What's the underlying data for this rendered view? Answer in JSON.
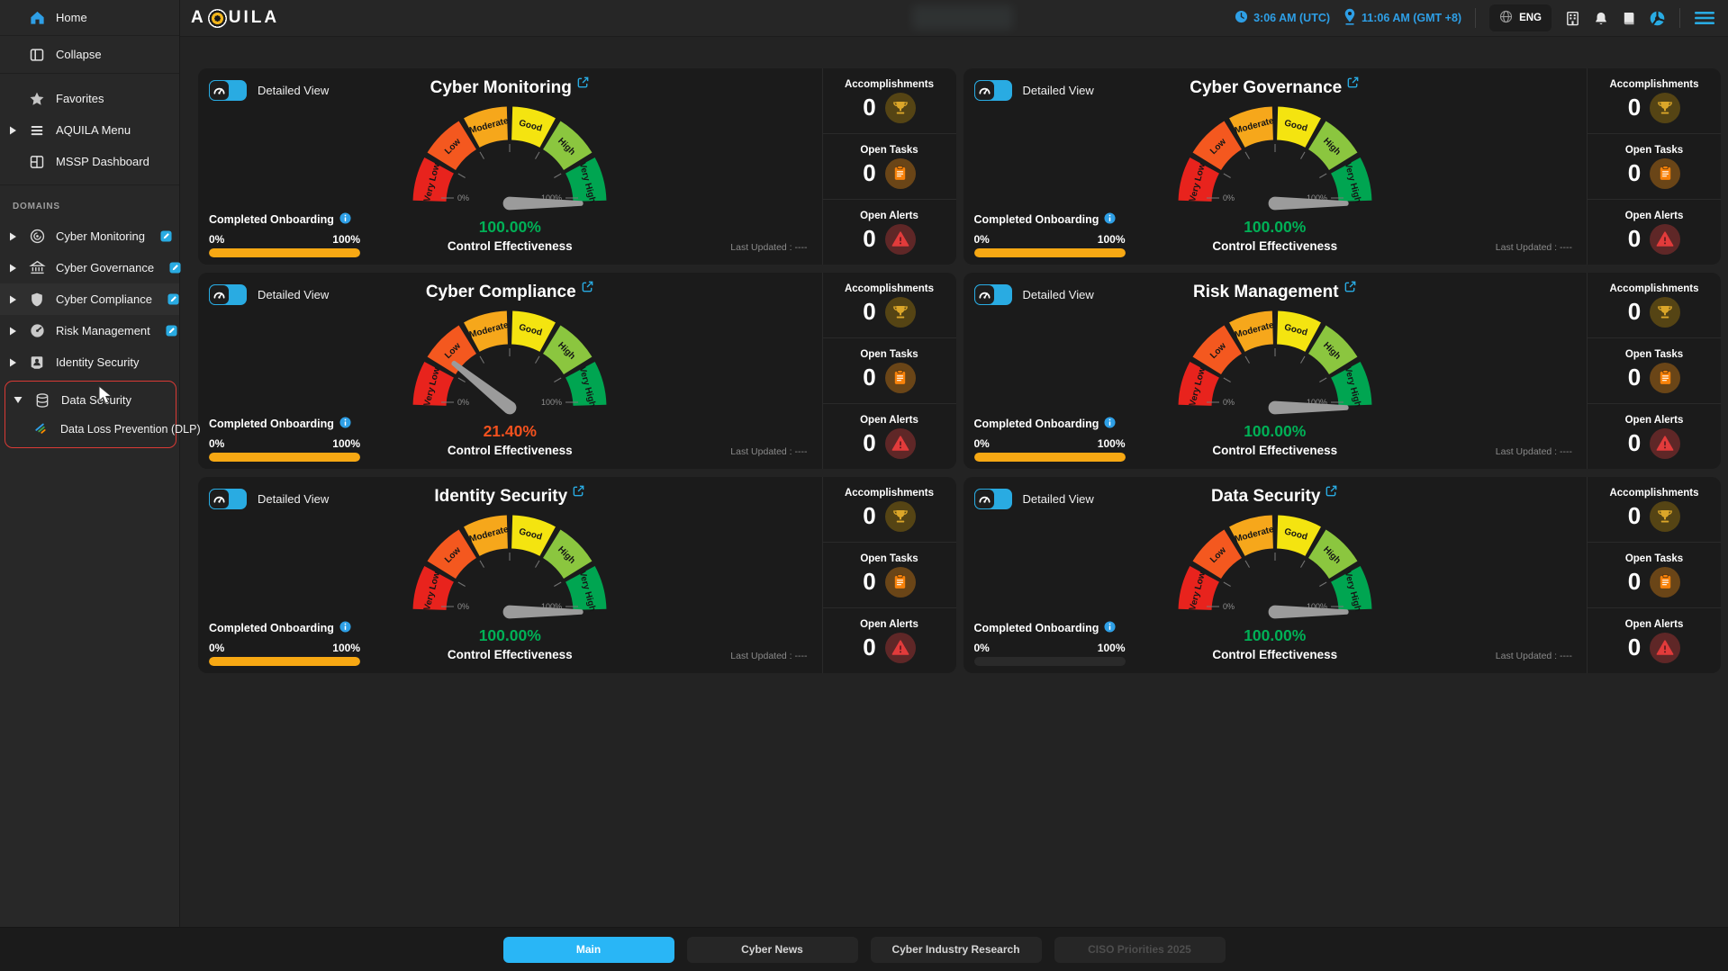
{
  "topbar": {
    "logo": "AQUILA",
    "utc_time": "3:06 AM (UTC)",
    "local_time": "11:06 AM (GMT +8)",
    "language": "ENG",
    "icons": [
      "clock-icon",
      "location-pin-icon",
      "globe-icon",
      "building-icon",
      "bell-icon",
      "book-icon",
      "support-wheel-icon",
      "menu-icon"
    ],
    "accent_blue": "#2e9fe6"
  },
  "sidebar": {
    "items": [
      {
        "label": "Home",
        "icon": "home",
        "caret": false
      },
      {
        "label": "Collapse",
        "icon": "collapse",
        "caret": false
      },
      {
        "label": "Favorites",
        "icon": "star",
        "caret": false
      },
      {
        "label": "AQUILA Menu",
        "icon": "menuLines",
        "caret": true
      },
      {
        "label": "MSSP Dashboard",
        "icon": "dashboard",
        "caret": false
      }
    ],
    "domains_header": "DOMAINS",
    "domains": [
      {
        "label": "Cyber Monitoring",
        "icon": "radar",
        "editable": true,
        "highlight": false
      },
      {
        "label": "Cyber Governance",
        "icon": "bank",
        "editable": true,
        "highlight": false
      },
      {
        "label": "Cyber Compliance",
        "icon": "shield",
        "editable": true,
        "highlight": true
      },
      {
        "label": "Risk Management",
        "icon": "speedo",
        "editable": true,
        "highlight": false
      },
      {
        "label": "Identity Security",
        "icon": "idbadge",
        "editable": false,
        "highlight": false
      }
    ],
    "data_security": {
      "label": "Data Security",
      "icon": "database-icon",
      "sub_label": "Data Loss Prevention (DLP)",
      "sub_icon": "dlp-icon",
      "focus_border_color": "#d93a35"
    }
  },
  "card_common": {
    "detailed_view": "Detailed View",
    "completed_onboarding": "Completed Onboarding",
    "scale_min": "0%",
    "scale_max": "100%",
    "control_effectiveness": "Control Effectiveness",
    "last_updated": "Last Updated : ----",
    "onboarding_bar_color": "#f7a813",
    "stats": [
      {
        "label": "Accomplishments",
        "count_key": "accomplishments",
        "icon": "trophy-icon",
        "circle": "#554414",
        "icon_color": "#dba629"
      },
      {
        "label": "Open Tasks",
        "count_key": "open_tasks",
        "icon": "clipboard-icon",
        "circle": "#6a4517",
        "icon_color": "#f8820a"
      },
      {
        "label": "Open Alerts",
        "count_key": "open_alerts",
        "icon": "alert-triangle-icon",
        "circle": "#5f2727",
        "icon_color": "#e23b3b"
      }
    ]
  },
  "gauge": {
    "segments": [
      {
        "label": "Very Low",
        "color": "#e8231d"
      },
      {
        "label": "Low",
        "color": "#f4581f"
      },
      {
        "label": "Moderate",
        "color": "#f6a71b"
      },
      {
        "label": "Good",
        "color": "#f4e410"
      },
      {
        "label": "High",
        "color": "#8bc63f"
      },
      {
        "label": "Very High",
        "color": "#00a551"
      }
    ],
    "min_label": "0%",
    "max_label": "100%",
    "needle_color": "#9b9b9b"
  },
  "cards": [
    {
      "title": "Cyber Monitoring",
      "value_pct": 100,
      "value_display": "100.00%",
      "value_color": "#00b056",
      "onboarding_filled": true,
      "accomplishments": "0",
      "open_tasks": "0",
      "open_alerts": "0"
    },
    {
      "title": "Cyber Governance",
      "value_pct": 100,
      "value_display": "100.00%",
      "value_color": "#00b056",
      "onboarding_filled": true,
      "accomplishments": "0",
      "open_tasks": "0",
      "open_alerts": "0"
    },
    {
      "title": "Cyber Compliance",
      "value_pct": 21.4,
      "value_display": "21.40%",
      "value_color": "#f4511e",
      "onboarding_filled": true,
      "accomplishments": "0",
      "open_tasks": "0",
      "open_alerts": "0"
    },
    {
      "title": "Risk Management",
      "value_pct": 100,
      "value_display": "100.00%",
      "value_color": "#00b056",
      "onboarding_filled": true,
      "accomplishments": "0",
      "open_tasks": "0",
      "open_alerts": "0"
    },
    {
      "title": "Identity Security",
      "value_pct": 100,
      "value_display": "100.00%",
      "value_color": "#00b056",
      "onboarding_filled": true,
      "accomplishments": "0",
      "open_tasks": "0",
      "open_alerts": "0"
    },
    {
      "title": "Data Security",
      "value_pct": 100,
      "value_display": "100.00%",
      "value_color": "#00b056",
      "onboarding_filled": false,
      "accomplishments": "0",
      "open_tasks": "0",
      "open_alerts": "0"
    }
  ],
  "footer": {
    "active_color": "#29b6f6",
    "tabs": [
      {
        "label": "Main",
        "state": "active"
      },
      {
        "label": "Cyber News",
        "state": "normal"
      },
      {
        "label": "Cyber Industry Research",
        "state": "normal"
      },
      {
        "label": "CISO Priorities 2025",
        "state": "disabled"
      }
    ]
  }
}
